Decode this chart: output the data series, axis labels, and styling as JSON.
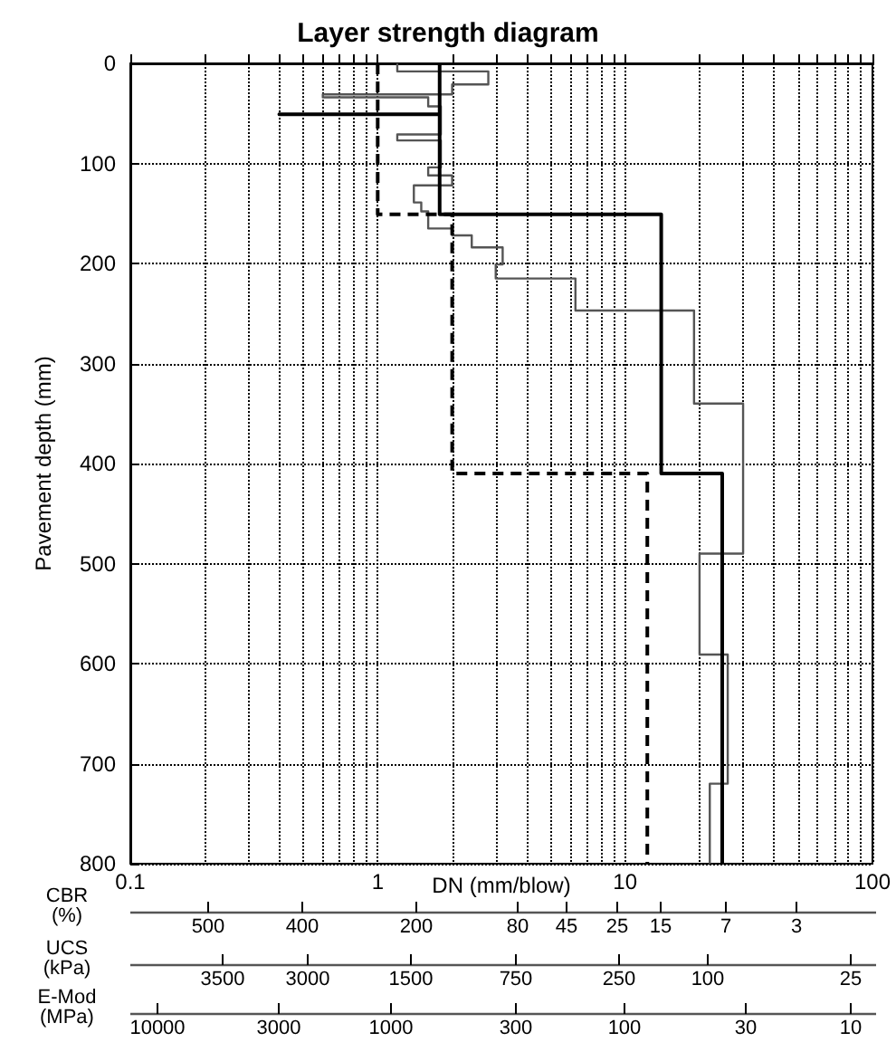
{
  "chart_data": [
    {
      "type": "step",
      "title": "Layer strength diagram",
      "xlabel": "DN (mm/blow)",
      "ylabel": "Pavement depth (mm)",
      "log": "x",
      "grid": true,
      "marker": "none",
      "xlim": [
        0.1,
        100
      ],
      "xticks": [
        0.1,
        {
          "value": 0.2,
          "label": null
        },
        {
          "value": 0.3,
          "label": null
        },
        {
          "value": 0.4,
          "label": null
        },
        {
          "value": 0.5,
          "label": null
        },
        {
          "value": 0.6,
          "label": null
        },
        {
          "value": 0.7,
          "label": null
        },
        {
          "value": 0.8,
          "label": null
        },
        {
          "value": 0.9,
          "label": null
        },
        1,
        {
          "value": 2,
          "label": null
        },
        {
          "value": 3,
          "label": null
        },
        {
          "value": 4,
          "label": null
        },
        {
          "value": 5,
          "label": null
        },
        {
          "value": 6,
          "label": null
        },
        {
          "value": 7,
          "label": null
        },
        {
          "value": 8,
          "label": null
        },
        {
          "value": 9,
          "label": null
        },
        10,
        {
          "value": 20,
          "label": null
        },
        {
          "value": 30,
          "label": null
        },
        {
          "value": 40,
          "label": null
        },
        {
          "value": 50,
          "label": null
        },
        {
          "value": 60,
          "label": null
        },
        {
          "value": 70,
          "label": null
        },
        {
          "value": 80,
          "label": null
        },
        {
          "value": 90,
          "label": null
        },
        100
      ],
      "ylim": [
        800,
        0
      ],
      "yticks": [
        0,
        100,
        200,
        300,
        400,
        500,
        600,
        700,
        800
      ],
      "series": [
        {
          "color": "#555555",
          "line_style": "solid",
          "x": [
            1.2,
            1.2,
            2.8,
            2.8,
            2.0,
            2.0,
            0.6,
            0.6,
            1.6,
            1.6,
            1.8,
            1.8,
            1.2,
            1.2,
            1.8,
            1.8,
            1.6,
            1.6,
            2.0,
            2.0,
            1.4,
            1.4,
            1.5,
            1.5,
            1.6,
            1.6,
            2.0,
            2.0,
            2.4,
            2.4,
            3.2,
            3.2,
            3.0,
            3.0,
            6.3,
            6.3,
            19,
            19,
            30,
            30,
            20,
            20,
            26,
            26,
            22,
            22
          ],
          "values": [
            0,
            8,
            8,
            21,
            21,
            31,
            31,
            34,
            34,
            43,
            43,
            71,
            71,
            77,
            77,
            104,
            104,
            112,
            112,
            122,
            122,
            139,
            139,
            148,
            148,
            165,
            165,
            172,
            172,
            184,
            184,
            201,
            201,
            215,
            215,
            247,
            247,
            340,
            340,
            490,
            490,
            591,
            591,
            720,
            720,
            800
          ]
        },
        {
          "color": "#000000",
          "line_style": "solid",
          "x": [
            1.78,
            1.78,
            0.4,
            1.78,
            1.78,
            14,
            14,
            24.7,
            24.7
          ],
          "values": [
            0,
            51,
            51,
            51,
            151,
            151,
            410,
            410,
            800
          ]
        },
        {
          "color": "#000000",
          "line_style": "dashed",
          "x": [
            1.0,
            1.0,
            2.0,
            2.0,
            12.3,
            12.3
          ],
          "values": [
            0,
            151,
            151,
            410,
            410,
            800
          ]
        }
      ]
    },
    {
      "type": "other",
      "title": "CBR (%)",
      "annotations": [
        "500",
        "400",
        "200",
        "80",
        "45",
        "25",
        "15",
        "7",
        "3"
      ]
    },
    {
      "type": "other",
      "title": "UCS (kPa)",
      "annotations": [
        "3500",
        "3000",
        "1500",
        "750",
        "250",
        "100",
        "25"
      ]
    },
    {
      "type": "other",
      "title": "E-Mod (MPa)",
      "annotations": [
        "10000",
        "3000",
        "1000",
        "300",
        "100",
        "30",
        "10"
      ]
    }
  ]
}
